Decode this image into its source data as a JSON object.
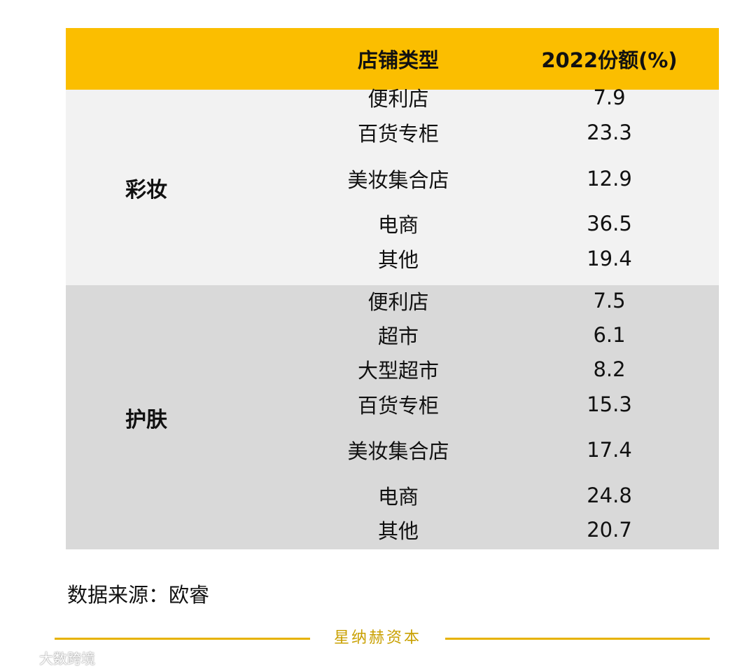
{
  "table": {
    "header": {
      "category": "",
      "store_type": "店铺类型",
      "share": "2022份额(%)"
    },
    "groups": [
      {
        "category": "彩妆",
        "rows": [
          {
            "store": "便利店",
            "share": "7.9"
          },
          {
            "store": "百货专柜",
            "share": "23.3"
          },
          {
            "store": "美妆集合店",
            "share": "12.9"
          },
          {
            "store": "电商",
            "share": "36.5"
          },
          {
            "store": "其他",
            "share": "19.4"
          }
        ]
      },
      {
        "category": "护肤",
        "rows": [
          {
            "store": "便利店",
            "share": "7.5"
          },
          {
            "store": "超市",
            "share": "6.1"
          },
          {
            "store": "大型超市",
            "share": "8.2"
          },
          {
            "store": "百货专柜",
            "share": "15.3"
          },
          {
            "store": "美妆集合店",
            "share": "17.4"
          },
          {
            "store": "电商",
            "share": "24.8"
          },
          {
            "store": "其他",
            "share": "20.7"
          }
        ]
      }
    ]
  },
  "source": "数据来源：欧睿",
  "footer_brand": "星纳赫资本",
  "watermark": "大数跨境",
  "colors": {
    "header_bg": "#fbbe00",
    "makeup_bg": "#f2f2f2",
    "skincare_bg": "#d9d9d9",
    "footer_accent": "#e7b200"
  }
}
